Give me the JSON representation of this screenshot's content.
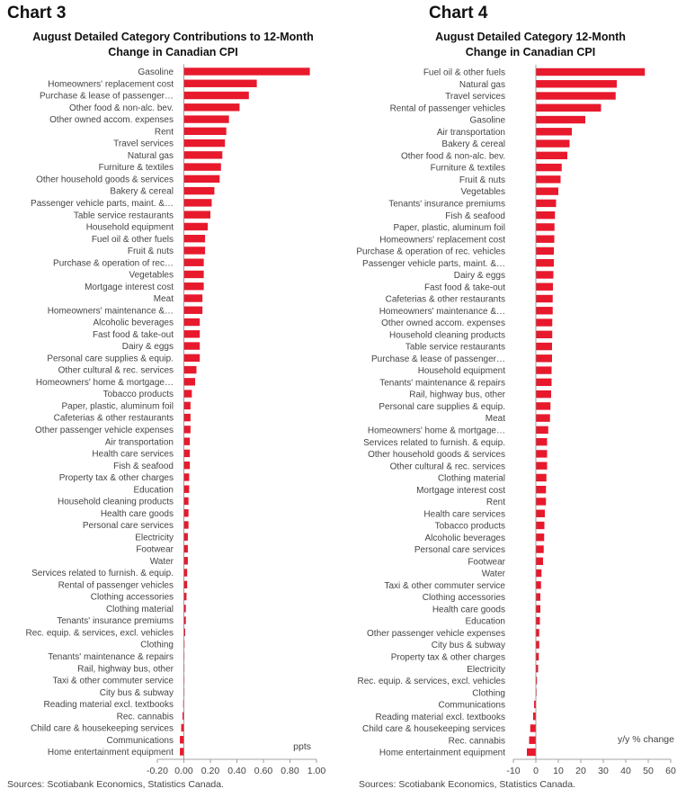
{
  "chart_data": [
    {
      "chart_label": "Chart 3",
      "type": "bar",
      "orientation": "horizontal",
      "title": "August Detailed Category Contributions to 12-Month\nChange in Canadian CPI",
      "unit_label": "ppts",
      "xlim": [
        -0.2,
        1.0
      ],
      "ticks": [
        "-0.20",
        "0.00",
        "0.20",
        "0.40",
        "0.60",
        "0.80",
        "1.00"
      ],
      "tick_values": [
        -0.2,
        0,
        0.2,
        0.4,
        0.6,
        0.8,
        1.0
      ],
      "color": "#e8192c",
      "source": "Sources: Scotiabank Economics, Statistics Canada.",
      "categories": [
        "Gasoline",
        "Homeowners' replacement cost",
        "Purchase & lease of passenger…",
        "Other food & non-alc. bev.",
        "Other owned accom. expenses",
        "Rent",
        "Travel services",
        "Natural gas",
        "Furniture & textiles",
        "Other household goods & services",
        "Bakery & cereal",
        "Passenger vehicle parts, maint. &…",
        "Table service restaurants",
        "Household equipment",
        "Fuel oil & other fuels",
        "Fruit & nuts",
        "Purchase & operation of rec…",
        "Vegetables",
        "Mortgage interest cost",
        "Meat",
        "Homeowners' maintenance &…",
        "Alcoholic beverages",
        "Fast food & take-out",
        "Dairy & eggs",
        "Personal care supplies & equip.",
        "Other cultural & rec. services",
        "Homeowners' home & mortgage…",
        "Tobacco products",
        "Paper, plastic, aluminum foil",
        "Cafeterias & other restaurants",
        "Other passenger vehicle expenses",
        "Air transportation",
        "Health care services",
        "Fish & seafood",
        "Property tax & other charges",
        "Education",
        "Household cleaning products",
        "Health care goods",
        "Personal care services",
        "Electricity",
        "Footwear",
        "Water",
        "Services related to furnish. & equip.",
        "Rental of passenger vehicles",
        "Clothing accessories",
        "Clothing material",
        "Tenants' insurance premiums",
        "Rec. equip. & services, excl. vehicles",
        "Clothing",
        "Tenants' maintenance & repairs",
        "Rail, highway bus, other",
        "Taxi & other commuter service",
        "City bus & subway",
        "Reading material excl. textbooks",
        "Rec. cannabis",
        "Child care & housekeeping services",
        "Communications",
        "Home entertainment equipment"
      ],
      "values": [
        0.95,
        0.55,
        0.49,
        0.42,
        0.34,
        0.32,
        0.31,
        0.29,
        0.28,
        0.27,
        0.23,
        0.21,
        0.2,
        0.18,
        0.16,
        0.16,
        0.15,
        0.15,
        0.15,
        0.14,
        0.14,
        0.12,
        0.12,
        0.12,
        0.12,
        0.095,
        0.085,
        0.06,
        0.05,
        0.05,
        0.05,
        0.045,
        0.045,
        0.045,
        0.04,
        0.04,
        0.035,
        0.035,
        0.035,
        0.03,
        0.03,
        0.03,
        0.025,
        0.025,
        0.02,
        0.015,
        0.015,
        0.01,
        0.005,
        0.004,
        0.003,
        0.002,
        0.002,
        -0.005,
        -0.01,
        -0.02,
        -0.03,
        -0.03
      ]
    },
    {
      "chart_label": "Chart 4",
      "type": "bar",
      "orientation": "horizontal",
      "title": "August Detailed Category 12-Month\nChange in Canadian CPI",
      "unit_label": "y/y % change",
      "xlim": [
        -10,
        60
      ],
      "ticks": [
        "-10",
        "0",
        "10",
        "20",
        "30",
        "40",
        "50",
        "60"
      ],
      "tick_values": [
        -10,
        0,
        10,
        20,
        30,
        40,
        50,
        60
      ],
      "color": "#e8192c",
      "source": "Sources: Scotiabank Economics, Statistics Canada.",
      "categories": [
        "Fuel oil & other fuels",
        "Natural gas",
        "Travel services",
        "Rental of passenger vehicles",
        "Gasoline",
        "Air transportation",
        "Bakery & cereal",
        "Other food & non-alc. bev.",
        "Furniture & textiles",
        "Fruit & nuts",
        "Vegetables",
        "Tenants' insurance premiums",
        "Fish & seafood",
        "Paper, plastic, aluminum foil",
        "Homeowners' replacement cost",
        "Purchase & operation of rec. vehicles",
        "Passenger vehicle parts, maint. &…",
        "Dairy & eggs",
        "Fast food & take-out",
        "Cafeterias & other restaurants",
        "Homeowners' maintenance &…",
        "Other owned accom. expenses",
        "Household cleaning products",
        "Table service restaurants",
        "Purchase & lease of passenger…",
        "Household equipment",
        "Tenants' maintenance & repairs",
        "Rail, highway bus, other",
        "Personal care supplies & equip.",
        "Meat",
        "Homeowners' home & mortgage…",
        "Services related to furnish. & equip.",
        "Other household goods & services",
        "Other cultural & rec. services",
        "Clothing material",
        "Mortgage interest cost",
        "Rent",
        "Health care services",
        "Tobacco products",
        "Alcoholic beverages",
        "Personal care services",
        "Footwear",
        "Water",
        "Taxi & other commuter service",
        "Clothing accessories",
        "Health care goods",
        "Education",
        "Other passenger vehicle expenses",
        "City bus & subway",
        "Property tax & other charges",
        "Electricity",
        "Rec. equip. & services, excl. vehicles",
        "Clothing",
        "Communications",
        "Reading material excl. textbooks",
        "Child care & housekeeping services",
        "Rec. cannabis",
        "Home entertainment equipment"
      ],
      "values": [
        48.5,
        36,
        35.5,
        29,
        22,
        16,
        15,
        14,
        11.5,
        11,
        10,
        9,
        8.5,
        8.3,
        8.2,
        8,
        8,
        7.8,
        7.6,
        7.5,
        7.5,
        7.3,
        7.3,
        7.2,
        7.2,
        7,
        7,
        6.8,
        6.5,
        6.3,
        5.5,
        5,
        5,
        5,
        4.7,
        4.5,
        4.5,
        4,
        3.8,
        3.7,
        3.5,
        3.2,
        2.5,
        2.3,
        2,
        2,
        1.8,
        1.5,
        1.5,
        1.3,
        1,
        0.5,
        0.3,
        -0.8,
        -1.2,
        -2.5,
        -3,
        -4
      ]
    }
  ]
}
